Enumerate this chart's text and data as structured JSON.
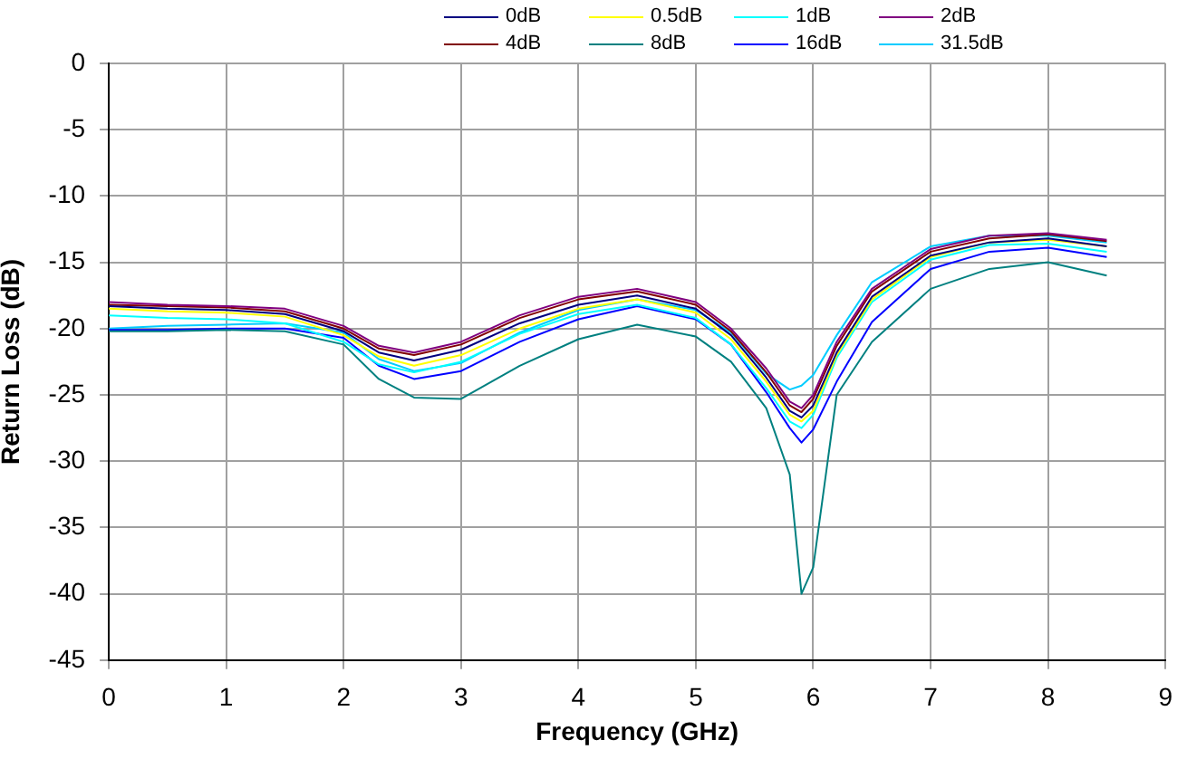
{
  "chart_data": {
    "type": "line",
    "xlabel": "Frequency (GHz)",
    "ylabel": "Return Loss (dB)",
    "x": [
      0,
      0.5,
      1,
      1.5,
      2,
      2.3,
      2.6,
      3,
      3.5,
      4,
      4.5,
      5,
      5.3,
      5.6,
      5.8,
      5.9,
      6,
      6.2,
      6.5,
      7,
      7.5,
      8,
      8.5
    ],
    "xlim": [
      0,
      9
    ],
    "xticks": [
      0,
      1,
      2,
      3,
      4,
      5,
      6,
      7,
      8,
      9
    ],
    "ylim": [
      -45,
      0
    ],
    "yticks": [
      0,
      -5,
      -10,
      -15,
      -20,
      -25,
      -30,
      -35,
      -40,
      -45
    ],
    "grid": true,
    "legend": "top",
    "marker": "none",
    "line_style": "solid",
    "series": [
      {
        "name": "0dB",
        "color": "#000080",
        "values": [
          -18.3,
          -18.5,
          -18.6,
          -18.9,
          -20.2,
          -21.8,
          -22.4,
          -21.6,
          -19.6,
          -18.2,
          -17.5,
          -18.5,
          -20.5,
          -23.7,
          -26.2,
          -26.7,
          -25.8,
          -21.8,
          -17.6,
          -14.5,
          -13.5,
          -13.2,
          -13.8
        ]
      },
      {
        "name": "0.5dB",
        "color": "#ffff00",
        "values": [
          -18.5,
          -18.7,
          -18.8,
          -19.1,
          -20.5,
          -22.1,
          -22.8,
          -22,
          -20,
          -18.5,
          -17.8,
          -18.8,
          -20.8,
          -24,
          -26.5,
          -27,
          -26.2,
          -22,
          -17.8,
          -14.6,
          -13.5,
          -13.3,
          -13.8
        ]
      },
      {
        "name": "1dB",
        "color": "#00ffff",
        "values": [
          -19,
          -19.2,
          -19.3,
          -19.6,
          -21,
          -22.7,
          -23.3,
          -22.5,
          -20.4,
          -18.9,
          -18.2,
          -19.2,
          -21.2,
          -24.5,
          -27,
          -27.5,
          -26.5,
          -22.2,
          -18,
          -14.8,
          -13.7,
          -13.6,
          -14.2
        ]
      },
      {
        "name": "2dB",
        "color": "#800080",
        "values": [
          -18,
          -18.2,
          -18.3,
          -18.5,
          -19.8,
          -21.3,
          -21.8,
          -21,
          -19,
          -17.6,
          -17,
          -18,
          -20,
          -23,
          -25.5,
          -26,
          -25,
          -21,
          -17,
          -14,
          -13,
          -12.8,
          -13.3
        ]
      },
      {
        "name": "4dB",
        "color": "#800000",
        "values": [
          -18.2,
          -18.3,
          -18.4,
          -18.7,
          -20,
          -21.5,
          -22,
          -21.2,
          -19.2,
          -17.8,
          -17.2,
          -18.2,
          -20.2,
          -23.3,
          -25.8,
          -26.3,
          -25.3,
          -21.3,
          -17.2,
          -14.2,
          -13.2,
          -12.9,
          -13.4
        ]
      },
      {
        "name": "8dB",
        "color": "#008080",
        "values": [
          -20.2,
          -20.2,
          -20.1,
          -20.2,
          -21.2,
          -23.8,
          -25.2,
          -25.3,
          -22.8,
          -20.8,
          -19.7,
          -20.6,
          -22.5,
          -26,
          -31,
          -40,
          -38,
          -25,
          -21,
          -17,
          -15.5,
          -15,
          -16
        ]
      },
      {
        "name": "16dB",
        "color": "#0000ff",
        "values": [
          -20.1,
          -20.1,
          -20,
          -20,
          -20.7,
          -22.8,
          -23.8,
          -23.2,
          -21,
          -19.3,
          -18.3,
          -19.3,
          -21.2,
          -24.8,
          -27.5,
          -28.6,
          -27.6,
          -24,
          -19.5,
          -15.5,
          -14.2,
          -13.9,
          -14.6
        ]
      },
      {
        "name": "31.5dB",
        "color": "#00ccff",
        "values": [
          -20,
          -19.8,
          -19.7,
          -19.6,
          -20.3,
          -22.3,
          -23.2,
          -22.6,
          -20.3,
          -18.6,
          -17.8,
          -18.6,
          -20.3,
          -23.4,
          -24.6,
          -24.3,
          -23.5,
          -20.5,
          -16.5,
          -13.8,
          -13,
          -13,
          -13.5
        ]
      }
    ]
  }
}
